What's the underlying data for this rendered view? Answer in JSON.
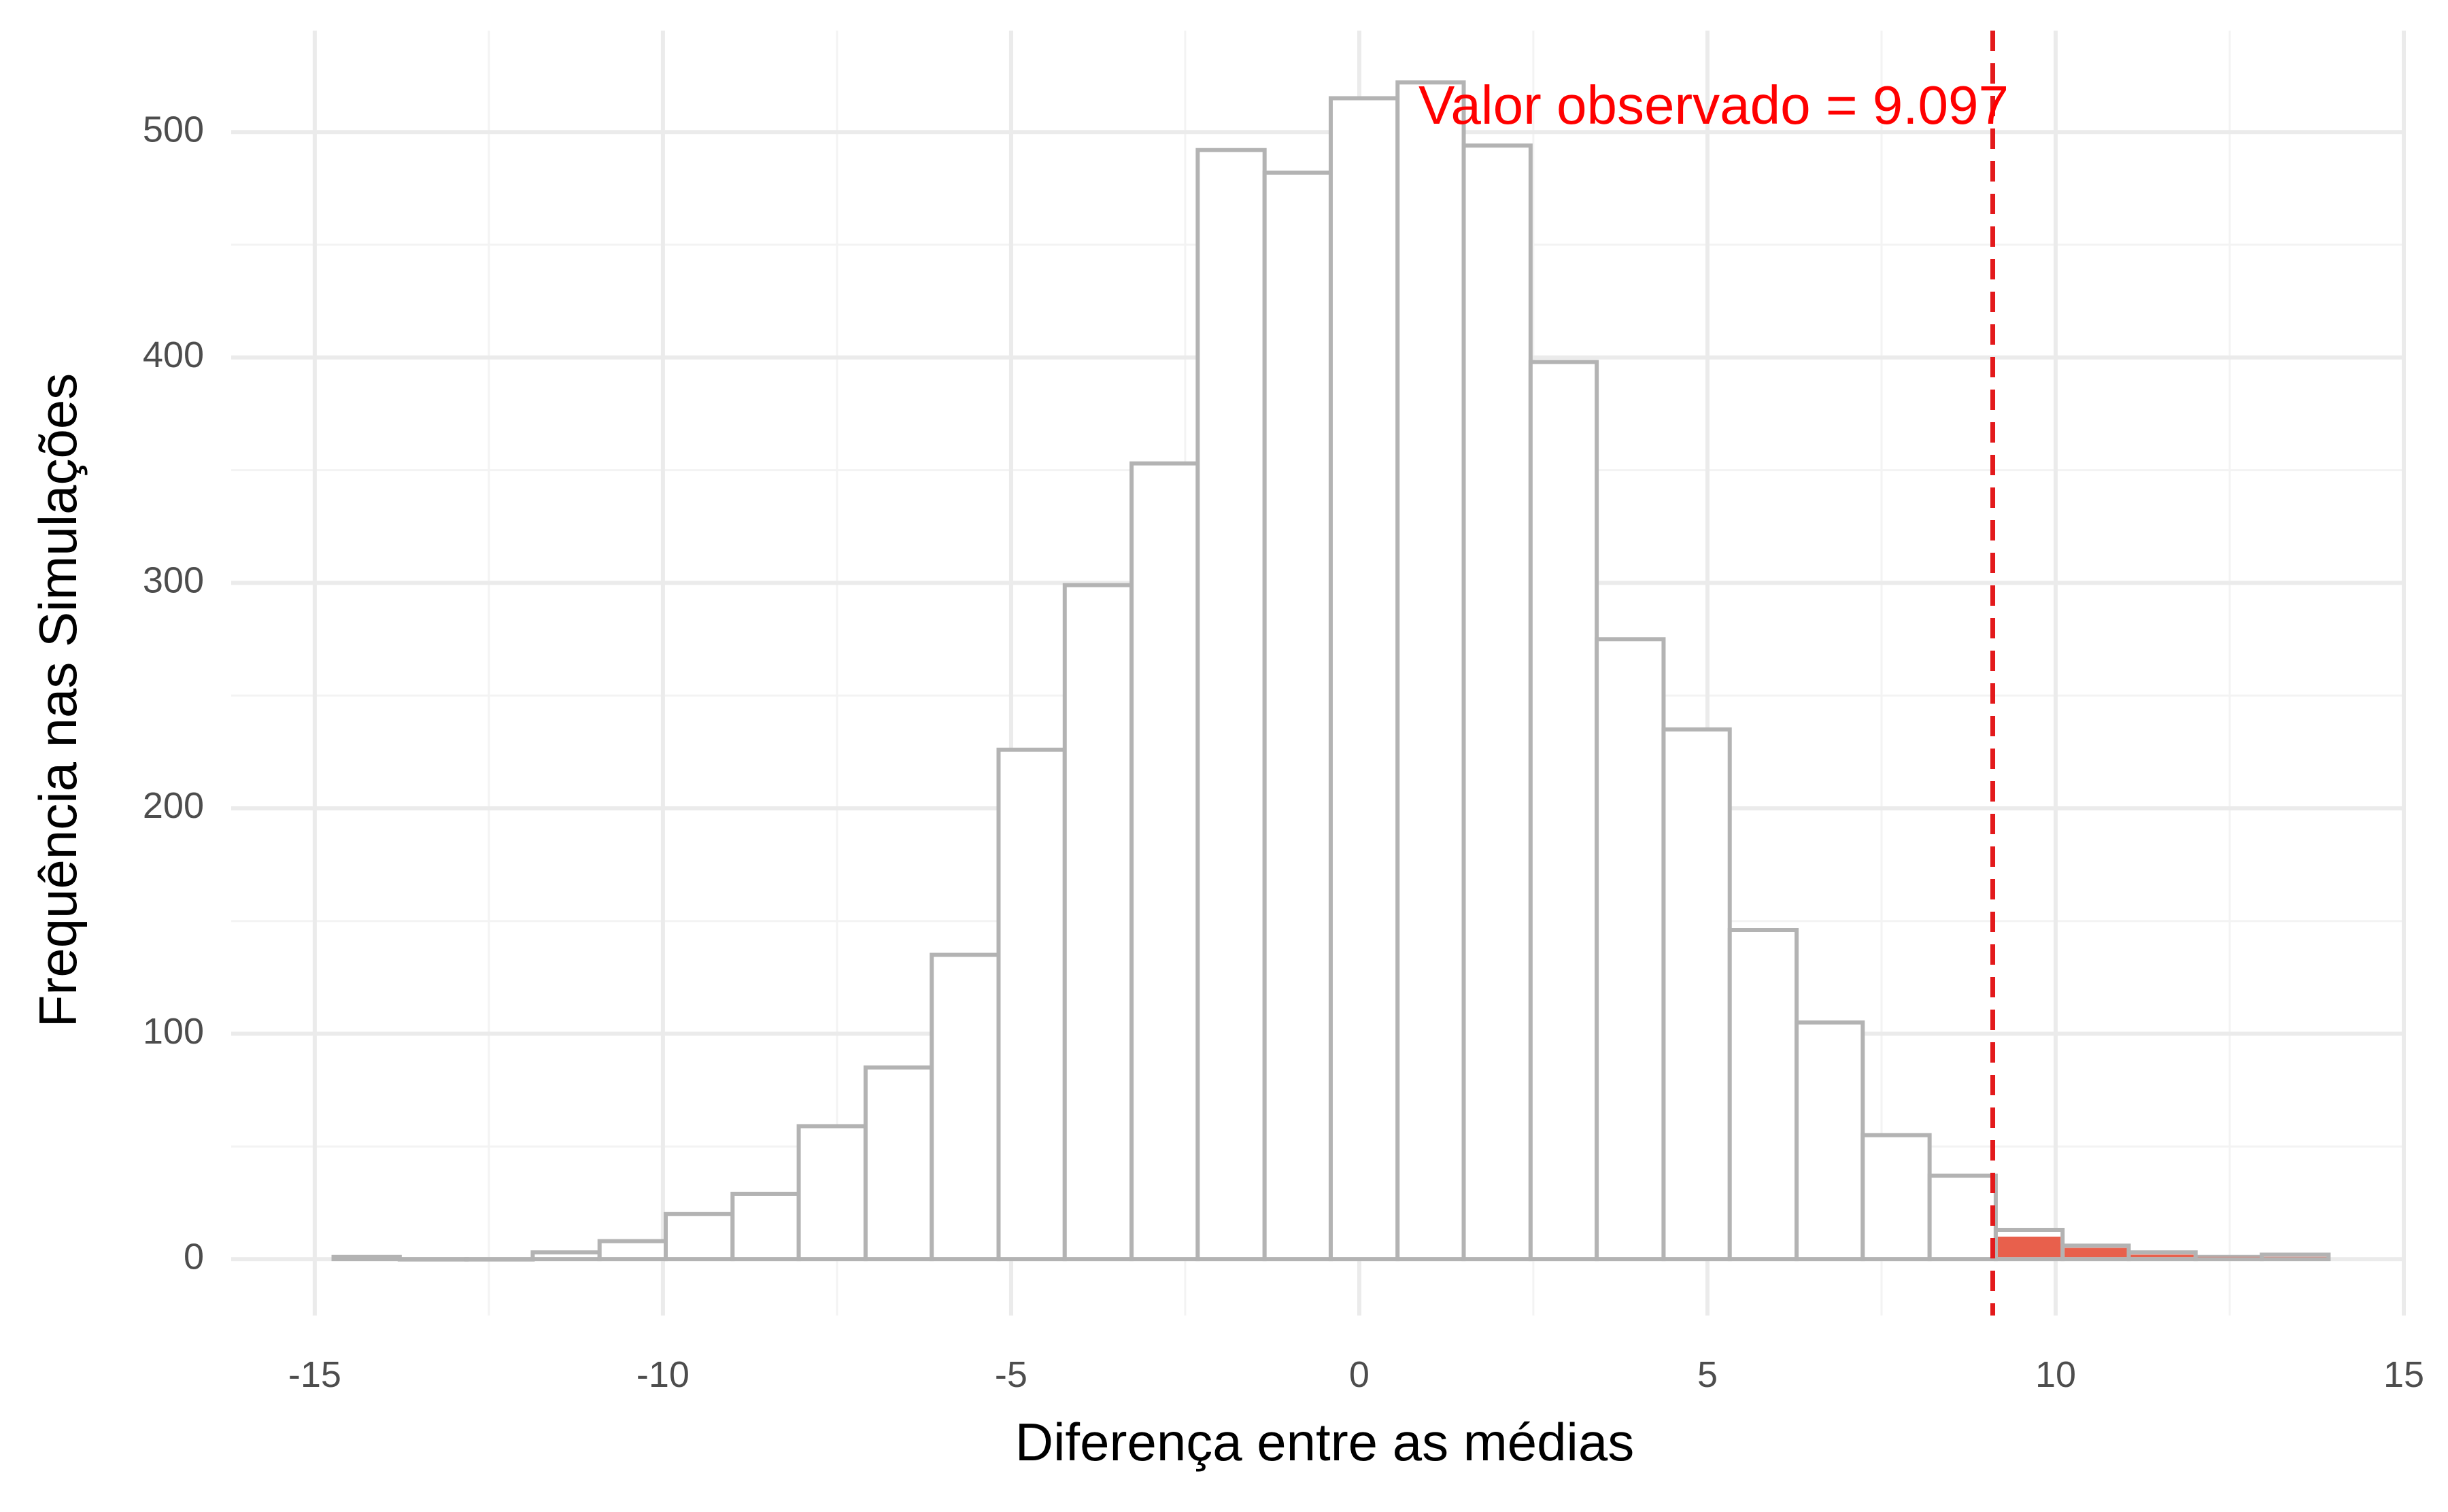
{
  "chart_data": {
    "type": "histogram",
    "xlabel": "Diferença entre as médias",
    "ylabel": "Frequência nas Simulações",
    "xlim": [
      -16.2,
      15.0
    ],
    "ylim": [
      -25,
      545
    ],
    "x_ticks": [
      -15,
      -10,
      -5,
      0,
      5,
      10,
      15
    ],
    "x_tick_labels": [
      "-15",
      "-10",
      "-5",
      "0",
      "5",
      "10",
      "15"
    ],
    "y_ticks": [
      0,
      100,
      200,
      300,
      400,
      500
    ],
    "y_tick_labels": [
      "0",
      "100",
      "200",
      "300",
      "400",
      "500"
    ],
    "grid": true,
    "bin_width": 0.955,
    "bins": [
      {
        "x0": -14.73,
        "x1": -13.78,
        "count": 1
      },
      {
        "x0": -13.78,
        "x1": -12.82,
        "count": 0
      },
      {
        "x0": -12.82,
        "x1": -11.87,
        "count": 0
      },
      {
        "x0": -11.87,
        "x1": -10.91,
        "count": 3
      },
      {
        "x0": -10.91,
        "x1": -9.96,
        "count": 8
      },
      {
        "x0": -9.96,
        "x1": -9.0,
        "count": 20
      },
      {
        "x0": -9.0,
        "x1": -8.05,
        "count": 29
      },
      {
        "x0": -8.05,
        "x1": -7.09,
        "count": 59
      },
      {
        "x0": -7.09,
        "x1": -6.14,
        "count": 85
      },
      {
        "x0": -6.14,
        "x1": -5.18,
        "count": 135
      },
      {
        "x0": -5.18,
        "x1": -4.23,
        "count": 226
      },
      {
        "x0": -4.23,
        "x1": -3.27,
        "count": 299
      },
      {
        "x0": -3.27,
        "x1": -2.32,
        "count": 353
      },
      {
        "x0": -2.32,
        "x1": -1.36,
        "count": 492
      },
      {
        "x0": -1.36,
        "x1": -0.41,
        "count": 482
      },
      {
        "x0": -0.41,
        "x1": 0.55,
        "count": 515
      },
      {
        "x0": 0.55,
        "x1": 1.5,
        "count": 522
      },
      {
        "x0": 1.5,
        "x1": 2.46,
        "count": 494
      },
      {
        "x0": 2.46,
        "x1": 3.41,
        "count": 398
      },
      {
        "x0": 3.41,
        "x1": 4.37,
        "count": 275
      },
      {
        "x0": 4.37,
        "x1": 5.32,
        "count": 235
      },
      {
        "x0": 5.32,
        "x1": 6.28,
        "count": 146
      },
      {
        "x0": 6.28,
        "x1": 7.23,
        "count": 105
      },
      {
        "x0": 7.23,
        "x1": 8.19,
        "count": 55
      },
      {
        "x0": 8.19,
        "x1": 9.14,
        "count": 37
      },
      {
        "x0": 9.14,
        "x1": 10.1,
        "count": 13
      },
      {
        "x0": 10.1,
        "x1": 11.05,
        "count": 6
      },
      {
        "x0": 11.05,
        "x1": 12.01,
        "count": 3
      },
      {
        "x0": 12.01,
        "x1": 12.96,
        "count": 1
      },
      {
        "x0": 12.96,
        "x1": 13.92,
        "count": 2
      }
    ],
    "highlight": [
      {
        "x0": 9.14,
        "x1": 10.1,
        "count": 10
      },
      {
        "x0": 10.1,
        "x1": 11.05,
        "count": 5
      },
      {
        "x0": 11.05,
        "x1": 12.01,
        "count": 2
      },
      {
        "x0": 12.01,
        "x1": 12.96,
        "count": 1
      },
      {
        "x0": 12.96,
        "x1": 13.92,
        "count": 1
      }
    ],
    "observed": {
      "value": 9.097,
      "label": "Valor observado = 9.097",
      "label_x": 0.85,
      "label_y": 510
    },
    "colors": {
      "bar_fill": "#ffffff",
      "bar_stroke": "#b3b3b3",
      "highlight_fill": "#e8604c",
      "observed_line": "#e31a1c",
      "annotation": "#ff0000",
      "grid_major": "#ebebeb",
      "grid_minor": "#f3f3f3"
    }
  }
}
